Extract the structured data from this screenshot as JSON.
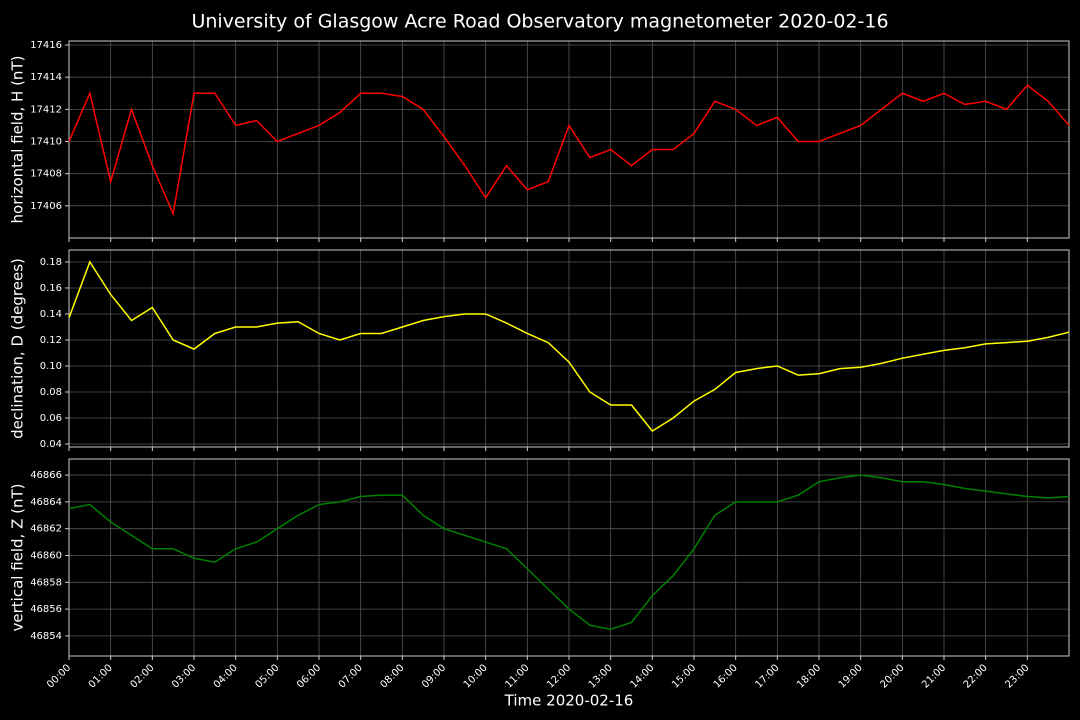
{
  "title": "University of Glasgow Acre Road Observatory magnetometer 2020-02-16",
  "chart_data": [
    {
      "type": "line",
      "ylabel": "horizontal field, H (nT)",
      "color": "#ff0000",
      "grid": true,
      "xlim": [
        0,
        24
      ],
      "ylim": [
        17404.0,
        17416.25
      ],
      "yticks": [
        17406,
        17408,
        17410,
        17412,
        17414,
        17416
      ],
      "x": [
        0,
        0.5,
        1,
        1.5,
        2,
        2.5,
        3,
        3.5,
        4,
        4.5,
        5,
        5.5,
        6,
        6.5,
        7,
        7.5,
        8,
        8.5,
        9,
        9.5,
        10,
        10.5,
        11,
        11.5,
        12,
        12.5,
        13,
        13.5,
        14,
        14.5,
        15,
        15.5,
        16,
        16.5,
        17,
        17.5,
        18,
        18.5,
        19,
        19.5,
        20,
        20.5,
        21,
        21.5,
        22,
        22.5,
        23,
        23.5,
        24
      ],
      "values": [
        17410,
        17413,
        17407.5,
        17412,
        17408.5,
        17405.5,
        17413,
        17413,
        17411,
        17411.3,
        17410,
        17410.5,
        17411,
        17411.8,
        17413,
        17413,
        17412.8,
        17412,
        17410.3,
        17408.5,
        17406.5,
        17408.5,
        17407,
        17407.5,
        17411,
        17409,
        17409.5,
        17408.5,
        17409.5,
        17409.5,
        17410.5,
        17412.5,
        17412,
        17411,
        17411.5,
        17410,
        17410,
        17410.5,
        17411,
        17412,
        17413,
        17412.5,
        17413,
        17412.3,
        17412.5,
        17412,
        17413.5,
        17412.5,
        17411
      ]
    },
    {
      "type": "line",
      "ylabel": "declination, D (degrees)",
      "color": "#ffff00",
      "grid": true,
      "xlim": [
        0,
        24
      ],
      "ylim": [
        0.0377,
        0.1892
      ],
      "yticks": [
        0.04,
        0.06,
        0.08,
        {
          "value": 0.1,
          "label": "0.10"
        },
        0.12,
        0.14,
        0.16,
        0.18
      ],
      "x": [
        0,
        0.5,
        1,
        1.5,
        2,
        2.5,
        3,
        3.5,
        4,
        4.5,
        5,
        5.5,
        6,
        6.5,
        7,
        7.5,
        8,
        8.5,
        9,
        9.5,
        10,
        10.5,
        11,
        11.5,
        12,
        12.5,
        13,
        13.5,
        14,
        14.5,
        15,
        15.5,
        16,
        16.5,
        17,
        17.5,
        18,
        18.5,
        19,
        19.5,
        20,
        20.5,
        21,
        21.5,
        22,
        22.5,
        23,
        23.5,
        24
      ],
      "values": [
        0.137,
        0.18,
        0.155,
        0.135,
        0.145,
        0.12,
        0.113,
        0.125,
        0.13,
        0.13,
        0.133,
        0.134,
        0.125,
        0.12,
        0.125,
        0.125,
        0.13,
        0.135,
        0.138,
        0.14,
        0.14,
        0.133,
        0.125,
        0.118,
        0.103,
        0.08,
        0.07,
        0.07,
        0.05,
        0.06,
        0.073,
        0.082,
        0.095,
        0.098,
        0.1,
        0.093,
        0.094,
        0.098,
        0.099,
        0.102,
        0.106,
        0.109,
        0.112,
        0.114,
        0.117,
        0.118,
        0.119,
        0.122,
        0.126
      ]
    },
    {
      "type": "line",
      "ylabel": "vertical field, Z (nT)",
      "xlabel": "Time 2020-02-16",
      "color": "#008000",
      "grid": true,
      "xlim": [
        0,
        24
      ],
      "ylim": [
        46852.5,
        46867.2
      ],
      "yticks": [
        46854,
        46856,
        46858,
        46860,
        46862,
        46864,
        46866
      ],
      "xticks": [
        {
          "value": 0,
          "label": "00:00"
        },
        {
          "value": 1,
          "label": "01:00"
        },
        {
          "value": 2,
          "label": "02:00"
        },
        {
          "value": 3,
          "label": "03:00"
        },
        {
          "value": 4,
          "label": "04:00"
        },
        {
          "value": 5,
          "label": "05:00"
        },
        {
          "value": 6,
          "label": "06:00"
        },
        {
          "value": 7,
          "label": "07:00"
        },
        {
          "value": 8,
          "label": "08:00"
        },
        {
          "value": 9,
          "label": "09:00"
        },
        {
          "value": 10,
          "label": "10:00"
        },
        {
          "value": 11,
          "label": "11:00"
        },
        {
          "value": 12,
          "label": "12:00"
        },
        {
          "value": 13,
          "label": "13:00"
        },
        {
          "value": 14,
          "label": "14:00"
        },
        {
          "value": 15,
          "label": "15:00"
        },
        {
          "value": 16,
          "label": "16:00"
        },
        {
          "value": 17,
          "label": "17:00"
        },
        {
          "value": 18,
          "label": "18:00"
        },
        {
          "value": 19,
          "label": "19:00"
        },
        {
          "value": 20,
          "label": "20:00"
        },
        {
          "value": 21,
          "label": "21:00"
        },
        {
          "value": 22,
          "label": "22:00"
        },
        {
          "value": 23,
          "label": "23:00"
        }
      ],
      "x": [
        0,
        0.5,
        1,
        1.5,
        2,
        2.5,
        3,
        3.5,
        4,
        4.5,
        5,
        5.5,
        6,
        6.5,
        7,
        7.5,
        8,
        8.5,
        9,
        9.5,
        10,
        10.5,
        11,
        11.5,
        12,
        12.5,
        13,
        13.5,
        14,
        14.5,
        15,
        15.5,
        16,
        16.5,
        17,
        17.5,
        18,
        18.5,
        19,
        19.5,
        20,
        20.5,
        21,
        21.5,
        22,
        22.5,
        23,
        23.5,
        24
      ],
      "values": [
        46863.5,
        46863.8,
        46862.5,
        46861.5,
        46860.5,
        46860.5,
        46859.8,
        46859.5,
        46860.5,
        46861,
        46862,
        46863,
        46863.8,
        46864,
        46864.4,
        46864.5,
        46864.5,
        46863,
        46862,
        46861.5,
        46861,
        46860.5,
        46859,
        46857.5,
        46856,
        46854.8,
        46854.5,
        46855,
        46857,
        46858.5,
        46860.5,
        46863,
        46864,
        46864,
        46864,
        46864.5,
        46865.5,
        46865.8,
        46866,
        46865.8,
        46865.5,
        46865.5,
        46865.3,
        46865,
        46864.8,
        46864.6,
        46864.4,
        46864.3,
        46864.4
      ]
    }
  ]
}
